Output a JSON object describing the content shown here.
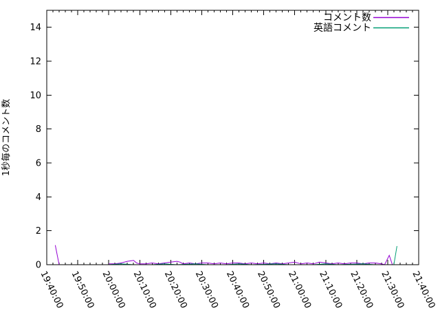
{
  "chart_data": {
    "type": "line",
    "title": "",
    "xlabel": "",
    "ylabel": "1秒毎のコメント数",
    "grid": false,
    "legend_position": "top-right-inside",
    "axis_color": "#000000",
    "background_color": "#ffffff",
    "ylim": [
      0,
      15
    ],
    "y_ticks": [
      "0",
      "2",
      "4",
      "6",
      "8",
      "10",
      "12",
      "14"
    ],
    "x_ticks": [
      "19:40:00",
      "19:50:00",
      "20:00:00",
      "20:10:00",
      "20:20:00",
      "20:30:00",
      "20:40:00",
      "20:50:00",
      "21:00:00",
      "21:10:00",
      "21:20:00",
      "21:30:00",
      "21:40:00"
    ],
    "x_start": "19:40:00",
    "x_end": "21:40:00",
    "x_range_minutes": 120,
    "x_major_interval_min": 10,
    "x_minor_interval_min": 2,
    "x_tick_rotation_deg": 64,
    "series": [
      {
        "name": "コメント数",
        "color": "#9400d3",
        "points": [
          [
            "19:42:45",
            1.15
          ],
          [
            "19:44:00",
            0
          ],
          null,
          [
            "20:00:00",
            0.05
          ],
          [
            "20:02:00",
            0.05
          ],
          [
            "20:04:00",
            0.1
          ],
          [
            "20:06:00",
            0.2
          ],
          [
            "20:08:00",
            0.25
          ],
          [
            "20:09:00",
            0.1
          ],
          [
            "20:10:00",
            0.05
          ],
          [
            "20:12:00",
            0.05
          ],
          [
            "20:14:00",
            0.1
          ],
          [
            "20:16:00",
            0.05
          ],
          [
            "20:18:00",
            0.1
          ],
          [
            "20:20:00",
            0.15
          ],
          [
            "20:22:00",
            0.2
          ],
          [
            "20:23:00",
            0.15
          ],
          [
            "20:24:00",
            0.05
          ],
          [
            "20:26:00",
            0.1
          ],
          [
            "20:28:00",
            0.05
          ],
          [
            "20:30:00",
            0.1
          ],
          [
            "20:32:00",
            0.1
          ],
          [
            "20:34:00",
            0.05
          ],
          [
            "20:36:00",
            0.1
          ],
          [
            "20:38:00",
            0.05
          ],
          [
            "20:40:00",
            0.1
          ],
          [
            "20:42:00",
            0.1
          ],
          [
            "20:44:00",
            0.05
          ],
          [
            "20:46:00",
            0.1
          ],
          [
            "20:48:00",
            0.05
          ],
          [
            "20:50:00",
            0.1
          ],
          [
            "20:52:00",
            0.05
          ],
          [
            "20:54:00",
            0.1
          ],
          [
            "20:56:00",
            0.05
          ],
          [
            "20:58:00",
            0.1
          ],
          [
            "21:00:00",
            0.15
          ],
          [
            "21:02:00",
            0.05
          ],
          [
            "21:04:00",
            0.1
          ],
          [
            "21:06:00",
            0.05
          ],
          [
            "21:08:00",
            0.15
          ],
          [
            "21:10:00",
            0.1
          ],
          [
            "21:12:00",
            0.05
          ],
          [
            "21:14:00",
            0.1
          ],
          [
            "21:16:00",
            0.05
          ],
          [
            "21:18:00",
            0.1
          ],
          [
            "21:20:00",
            0.1
          ],
          [
            "21:22:00",
            0.05
          ],
          [
            "21:24:00",
            0.1
          ],
          [
            "21:26:00",
            0.1
          ],
          [
            "21:28:00",
            0.05
          ],
          [
            "21:29:00",
            0
          ],
          [
            "21:30:30",
            0.55
          ],
          [
            "21:31:30",
            0
          ],
          [
            "21:32:00",
            0
          ]
        ]
      },
      {
        "name": "英語コメント",
        "color": "#009e73",
        "points": [
          [
            "20:00:00",
            0
          ],
          [
            "20:04:00",
            0.05
          ],
          [
            "20:08:00",
            0
          ],
          [
            "20:14:00",
            0
          ],
          [
            "20:18:00",
            0.05
          ],
          [
            "20:22:00",
            0
          ],
          [
            "20:28:00",
            0.05
          ],
          [
            "20:32:00",
            0
          ],
          [
            "20:38:00",
            0
          ],
          [
            "20:42:00",
            0.05
          ],
          [
            "20:46:00",
            0
          ],
          [
            "20:54:00",
            0.05
          ],
          [
            "20:58:00",
            0
          ],
          [
            "21:06:00",
            0
          ],
          [
            "21:10:00",
            0.05
          ],
          [
            "21:14:00",
            0
          ],
          [
            "21:22:00",
            0.05
          ],
          [
            "21:26:00",
            0
          ],
          [
            "21:31:00",
            0
          ],
          [
            "21:32:00",
            0
          ],
          [
            "21:33:00",
            1.1
          ]
        ]
      }
    ]
  }
}
